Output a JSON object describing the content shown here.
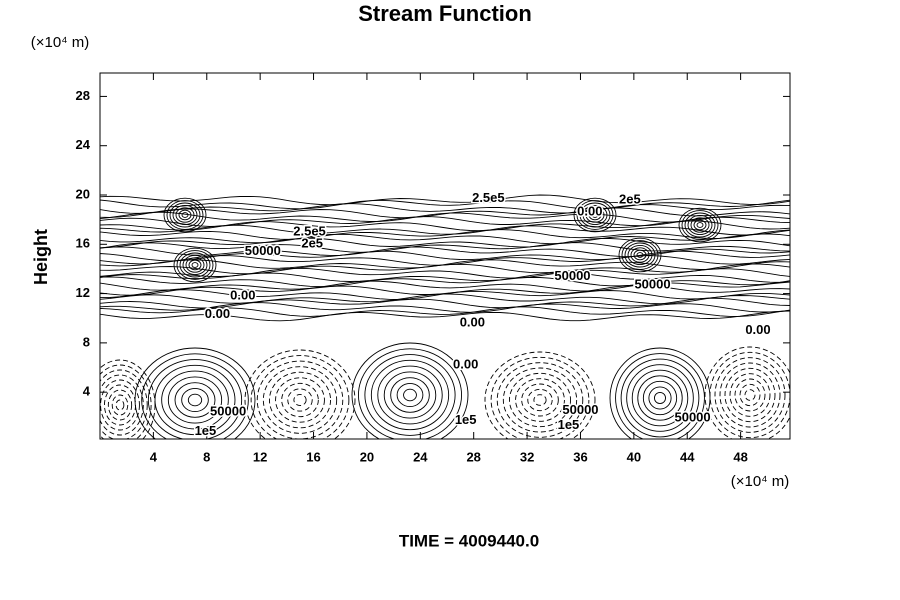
{
  "chart_data": {
    "type": "contour",
    "title": "Stream Function",
    "y_unit": "(×10⁴ m)",
    "x_unit": "(×10⁴ m)",
    "ylabel": "Height",
    "footer": "TIME = 4009440.0",
    "xlim": [
      0,
      51.7
    ],
    "ylim": [
      0.2,
      29.9
    ],
    "xticks": [
      4,
      8,
      12,
      16,
      20,
      24,
      28,
      32,
      36,
      40,
      44,
      48
    ],
    "yticks": [
      4,
      8,
      12,
      16,
      20,
      24,
      28
    ],
    "grid": false,
    "contour_labels": [
      {
        "text": "2.5e5",
        "x": 29.1,
        "y": 19.7
      },
      {
        "text": "2e5",
        "x": 39.7,
        "y": 19.6
      },
      {
        "text": "0.00",
        "x": 36.7,
        "y": 18.6
      },
      {
        "text": "2.5e5",
        "x": 15.7,
        "y": 17.0
      },
      {
        "text": "2e5",
        "x": 15.9,
        "y": 16.0
      },
      {
        "text": "50000",
        "x": 12.2,
        "y": 15.4
      },
      {
        "text": "50000",
        "x": 35.4,
        "y": 13.4
      },
      {
        "text": "50000",
        "x": 41.4,
        "y": 12.7
      },
      {
        "text": "0.00",
        "x": 10.7,
        "y": 11.8
      },
      {
        "text": "0.00",
        "x": 8.8,
        "y": 10.3
      },
      {
        "text": "0.00",
        "x": 27.9,
        "y": 9.6
      },
      {
        "text": "0.00",
        "x": 49.3,
        "y": 9.0
      },
      {
        "text": "0.00",
        "x": 27.4,
        "y": 6.2
      },
      {
        "text": "1e5",
        "x": 27.4,
        "y": 1.7
      },
      {
        "text": "1e5",
        "x": 7.9,
        "y": 0.8
      },
      {
        "text": "50000",
        "x": 9.6,
        "y": 2.4
      },
      {
        "text": "50000",
        "x": 36.0,
        "y": 2.5
      },
      {
        "text": "1e5",
        "x": 35.1,
        "y": 1.3
      },
      {
        "text": "50000",
        "x": 44.4,
        "y": 1.9
      }
    ]
  }
}
